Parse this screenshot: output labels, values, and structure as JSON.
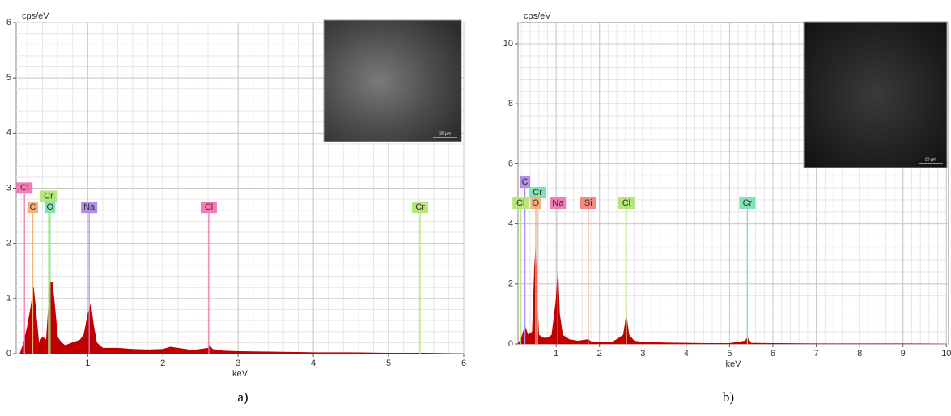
{
  "chart_data": [
    {
      "type": "area",
      "ylabel": "cps/eV",
      "xlabel": "keV",
      "caption": "a)",
      "color": "#c00000",
      "grid": true,
      "minor_divisions": 5,
      "xlim": [
        0.05,
        6
      ],
      "ylim": [
        0,
        6
      ],
      "xticks": [
        1,
        2,
        3,
        4,
        5,
        6
      ],
      "yticks": [
        0,
        1,
        2,
        3,
        4,
        5,
        6
      ],
      "x": [
        0.1,
        0.15,
        0.2,
        0.25,
        0.28,
        0.31,
        0.35,
        0.4,
        0.45,
        0.5,
        0.53,
        0.56,
        0.6,
        0.65,
        0.7,
        0.8,
        0.9,
        0.95,
        1.0,
        1.04,
        1.08,
        1.12,
        1.2,
        1.4,
        1.6,
        1.8,
        2.0,
        2.1,
        2.2,
        2.4,
        2.6,
        2.62,
        2.66,
        2.8,
        3.0,
        3.5,
        4.0,
        4.5,
        5.0,
        5.4,
        5.5,
        6.0
      ],
      "values": [
        0,
        0.2,
        0.5,
        0.9,
        1.2,
        0.8,
        0.2,
        0.3,
        0.25,
        1.3,
        1.3,
        0.9,
        0.3,
        0.2,
        0.15,
        0.2,
        0.25,
        0.35,
        0.7,
        0.9,
        0.5,
        0.2,
        0.1,
        0.1,
        0.08,
        0.07,
        0.08,
        0.12,
        0.1,
        0.06,
        0.1,
        0.15,
        0.08,
        0.05,
        0.04,
        0.03,
        0.02,
        0.02,
        0.01,
        0.01,
        0.01,
        0
      ],
      "annotations": [
        {
          "label": "Cl",
          "x": 0.16,
          "y": 2.9,
          "color": "#f27cb6"
        },
        {
          "label": "C",
          "x": 0.27,
          "y": 2.55,
          "color": "#f7b07c"
        },
        {
          "label": "Cr",
          "x": 0.48,
          "y": 2.75,
          "color": "#b6e67a"
        },
        {
          "label": "O",
          "x": 0.5,
          "y": 2.55,
          "color": "#7fe3b3"
        },
        {
          "label": "Na",
          "x": 1.02,
          "y": 2.55,
          "color": "#b28ce6"
        },
        {
          "label": "Cl",
          "x": 2.61,
          "y": 2.55,
          "color": "#f27cb6"
        },
        {
          "label": "Cr",
          "x": 5.42,
          "y": 2.55,
          "color": "#b6e67a"
        }
      ],
      "inset_scale": "20 µm"
    },
    {
      "type": "area",
      "ylabel": "cps/eV",
      "xlabel": "keV",
      "caption": "b)",
      "color": "#c00000",
      "grid": true,
      "minor_divisions": 5,
      "xlim": [
        0.12,
        10.05
      ],
      "ylim": [
        0,
        10.7
      ],
      "xticks": [
        1,
        2,
        3,
        4,
        5,
        6,
        7,
        8,
        9,
        10
      ],
      "yticks": [
        0,
        2,
        4,
        6,
        8,
        10
      ],
      "x": [
        0.12,
        0.2,
        0.28,
        0.35,
        0.45,
        0.5,
        0.53,
        0.56,
        0.6,
        0.7,
        0.8,
        0.9,
        1.0,
        1.04,
        1.08,
        1.15,
        1.3,
        1.5,
        1.74,
        1.8,
        2.0,
        2.3,
        2.55,
        2.62,
        2.68,
        2.8,
        3.0,
        3.5,
        4.0,
        4.5,
        5.0,
        5.35,
        5.41,
        5.5,
        6.0,
        7.0,
        8.0,
        9.0,
        10.0
      ],
      "values": [
        0,
        0.2,
        0.6,
        0.3,
        0.4,
        2.5,
        3.3,
        1.5,
        0.3,
        0.2,
        0.2,
        0.3,
        1.5,
        2.5,
        1.0,
        0.3,
        0.15,
        0.1,
        0.15,
        0.08,
        0.07,
        0.06,
        0.3,
        0.95,
        0.3,
        0.1,
        0.06,
        0.04,
        0.03,
        0.02,
        0.02,
        0.1,
        0.2,
        0.03,
        0.02,
        0.01,
        0.01,
        0.01,
        0
      ],
      "annotations": [
        {
          "label": "C",
          "x": 0.28,
          "y": 5.2,
          "color": "#b28ce6"
        },
        {
          "label": "Cr",
          "x": 0.57,
          "y": 4.85,
          "color": "#7fe3b3"
        },
        {
          "label": "Cl",
          "x": 0.18,
          "y": 4.5,
          "color": "#b6e67a"
        },
        {
          "label": "O",
          "x": 0.53,
          "y": 4.5,
          "color": "#f7b07c"
        },
        {
          "label": "Na",
          "x": 1.04,
          "y": 4.5,
          "color": "#f27cb6"
        },
        {
          "label": "Si",
          "x": 1.74,
          "y": 4.5,
          "color": "#f28a80"
        },
        {
          "label": "Cl",
          "x": 2.62,
          "y": 4.5,
          "color": "#b6e67a"
        },
        {
          "label": "Cr",
          "x": 5.41,
          "y": 4.5,
          "color": "#7fe3b3"
        }
      ],
      "inset_scale": "20 µm"
    }
  ]
}
